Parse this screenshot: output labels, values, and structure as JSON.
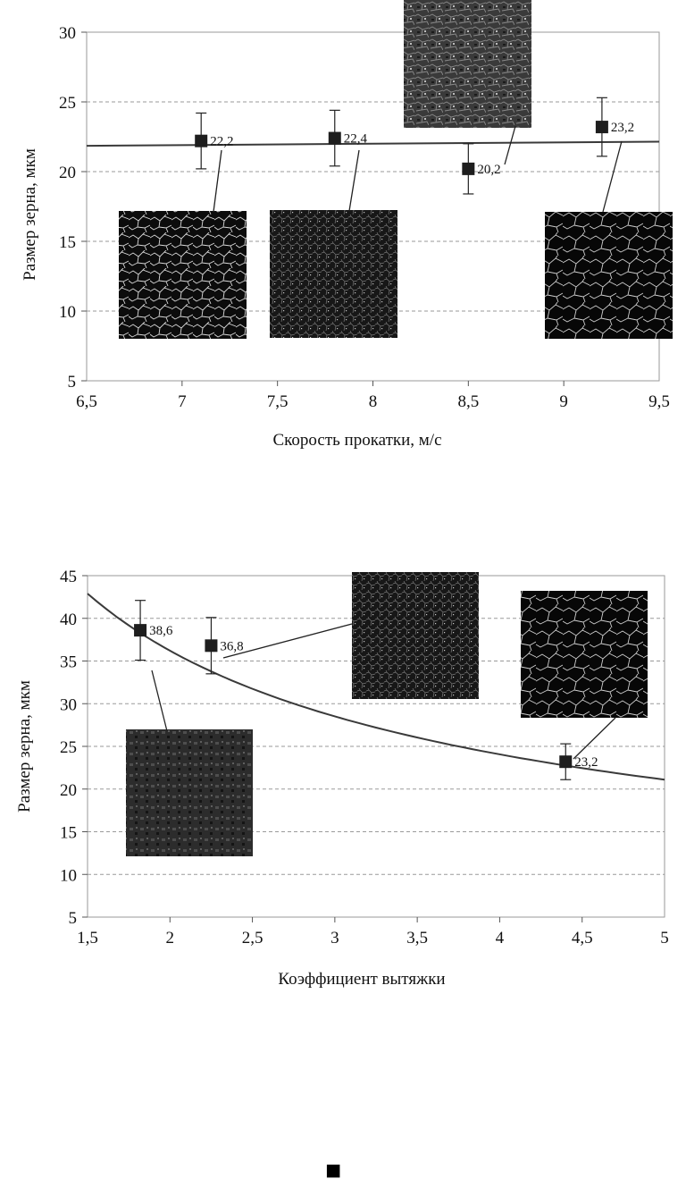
{
  "chart_data": [
    {
      "type": "scatter",
      "xlabel": "Скорость прокатки, м/с",
      "ylabel": "Размер зерна, мкм",
      "xlim": [
        6.5,
        9.5
      ],
      "ylim": [
        5,
        30
      ],
      "xticks": [
        "6,5",
        "7",
        "7,5",
        "8",
        "8,5",
        "9",
        "9,5"
      ],
      "yticks": [
        "5",
        "10",
        "15",
        "20",
        "25",
        "30"
      ],
      "grid": "horizontal dashed",
      "points": [
        {
          "x": 7.1,
          "y": 22.2,
          "err": 2.0,
          "label": "22,2"
        },
        {
          "x": 7.8,
          "y": 22.4,
          "err": 2.0,
          "label": "22,4"
        },
        {
          "x": 8.5,
          "y": 20.2,
          "err": 1.8,
          "label": "20,2"
        },
        {
          "x": 9.2,
          "y": 23.2,
          "err": 2.1,
          "label": "23,2"
        }
      ],
      "trendline": {
        "type": "linear",
        "x": [
          6.5,
          9.5
        ],
        "y": [
          21.85,
          22.15
        ]
      },
      "micrographs": 4
    },
    {
      "type": "scatter",
      "xlabel": "Коэффициент вытяжки",
      "ylabel": "Размер зерна, мкм",
      "xlim": [
        1.5,
        5
      ],
      "ylim": [
        5,
        45
      ],
      "xticks": [
        "1,5",
        "2",
        "2,5",
        "3",
        "3,5",
        "4",
        "4,5",
        "5"
      ],
      "yticks": [
        "5",
        "10",
        "15",
        "20",
        "25",
        "30",
        "35",
        "40",
        "45"
      ],
      "grid": "horizontal dashed",
      "points": [
        {
          "x": 1.82,
          "y": 38.6,
          "err": 3.5,
          "label": "38,6"
        },
        {
          "x": 2.25,
          "y": 36.8,
          "err": 3.3,
          "label": "36,8"
        },
        {
          "x": 4.4,
          "y": 23.2,
          "err": 2.1,
          "label": "23,2"
        }
      ],
      "trendline": {
        "type": "power",
        "x": [
          1.5,
          2,
          2.5,
          3,
          3.5,
          4,
          4.5,
          5
        ],
        "y": [
          42.9,
          38.0,
          34.0,
          30.5,
          28.0,
          25.9,
          23.2,
          21.1
        ]
      },
      "micrographs": 3
    }
  ],
  "footer_mark": "■"
}
